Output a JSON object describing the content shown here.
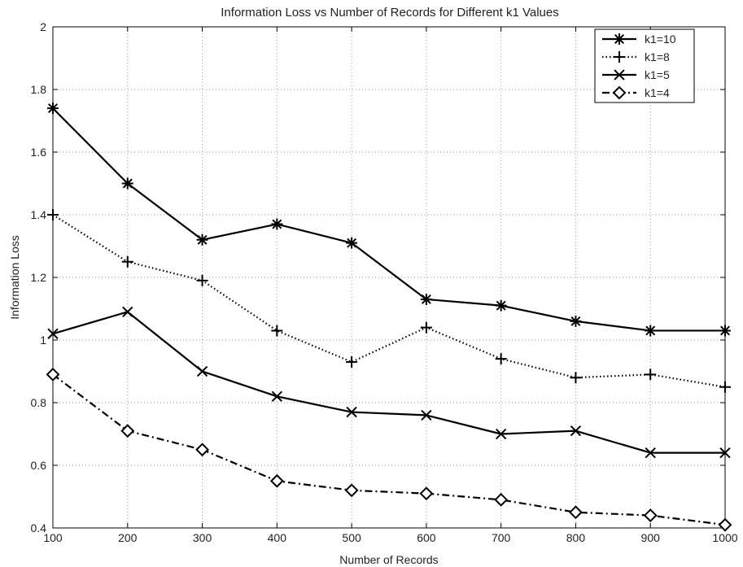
{
  "chart_data": {
    "type": "line",
    "title": "Information Loss vs Number of Records for Different k1 Values",
    "xlabel": "Number of Records",
    "ylabel": "Information Loss",
    "x": [
      100,
      200,
      300,
      400,
      500,
      600,
      700,
      800,
      900,
      1000
    ],
    "xlim": [
      100,
      1000
    ],
    "ylim": [
      0.4,
      2
    ],
    "x_ticks": [
      "100",
      "200",
      "300",
      "400",
      "500",
      "600",
      "700",
      "800",
      "900",
      "1000"
    ],
    "y_ticks": [
      "0.4",
      "0.6",
      "0.8",
      "1",
      "1.2",
      "1.4",
      "1.6",
      "1.8",
      "2"
    ],
    "grid": true,
    "legend_position": "top-right",
    "series": [
      {
        "name": "k1=10",
        "marker": "asterisk",
        "line_style": "solid",
        "values": [
          1.74,
          1.5,
          1.32,
          1.37,
          1.31,
          1.13,
          1.11,
          1.06,
          1.03,
          1.03
        ]
      },
      {
        "name": "k1=8",
        "marker": "plus",
        "line_style": "dotted",
        "values": [
          1.4,
          1.25,
          1.19,
          1.03,
          0.93,
          1.04,
          0.94,
          0.88,
          0.89,
          0.85
        ]
      },
      {
        "name": "k1=5",
        "marker": "x",
        "line_style": "solid",
        "values": [
          1.02,
          1.09,
          0.9,
          0.82,
          0.77,
          0.76,
          0.7,
          0.71,
          0.64,
          0.64
        ]
      },
      {
        "name": "k1=4",
        "marker": "diamond",
        "line_style": "dash-dot",
        "values": [
          0.89,
          0.71,
          0.65,
          0.55,
          0.52,
          0.51,
          0.49,
          0.45,
          0.44,
          0.41
        ]
      }
    ]
  }
}
